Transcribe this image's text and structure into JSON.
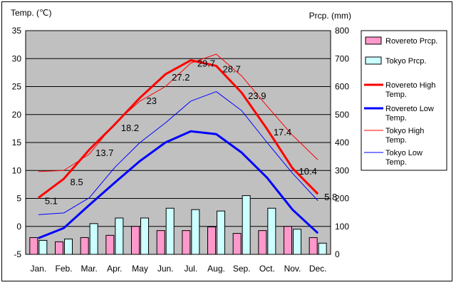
{
  "chart_data": {
    "type": "bar",
    "title": "",
    "y_left_label": "Temp. (℃)",
    "y_right_label": "Prcp. (mm)",
    "categories": [
      "Jan.",
      "Feb.",
      "Mar.",
      "Apr.",
      "May",
      "Jun.",
      "Jul.",
      "Aug.",
      "Sep.",
      "Oct.",
      "Nov.",
      "Dec."
    ],
    "y_left_ticks": [
      "35",
      "30",
      "25",
      "20",
      "15",
      "10",
      "5",
      "0",
      "-5"
    ],
    "y_right_ticks": [
      "800",
      "700",
      "600",
      "500",
      "400",
      "300",
      "200",
      "100",
      "0"
    ],
    "y_left_lim": [
      -5,
      35
    ],
    "y_right_lim": [
      0,
      800
    ],
    "grid": true,
    "legend_position": "right",
    "series": [
      {
        "name": "Rovereto Prcp.",
        "kind": "bar",
        "axis": "right",
        "color": "#FF99CC",
        "values": [
          60,
          45,
          60,
          68,
          100,
          85,
          85,
          98,
          75,
          85,
          100,
          60
        ]
      },
      {
        "name": "Tokyo Prcp.",
        "kind": "bar",
        "axis": "right",
        "color": "#CCFFFF",
        "values": [
          50,
          55,
          110,
          130,
          130,
          165,
          160,
          155,
          210,
          165,
          90,
          40
        ]
      },
      {
        "name": "Rovereto High Temp.",
        "kind": "line",
        "axis": "left",
        "color": "#FF0000",
        "width": 3,
        "values": [
          5.1,
          8.5,
          13.7,
          18.2,
          23,
          27.2,
          29.7,
          28.7,
          23.9,
          17.4,
          10.4,
          5.8
        ]
      },
      {
        "name": "Rovereto Low Temp.",
        "kind": "line",
        "axis": "left",
        "color": "#0000FF",
        "width": 3,
        "values": [
          -2.1,
          -0.3,
          3.8,
          7.8,
          11.7,
          15,
          17,
          16.5,
          13.2,
          8.7,
          3,
          -1.2
        ]
      },
      {
        "name": "Tokyo High Temp.",
        "kind": "line",
        "axis": "left",
        "color": "#FF0000",
        "width": 1,
        "values": [
          9.8,
          10,
          12.9,
          18.4,
          22.4,
          25,
          29.2,
          30.8,
          26.9,
          21.5,
          16.3,
          11.9
        ]
      },
      {
        "name": "Tokyo Low Temp.",
        "kind": "line",
        "axis": "left",
        "color": "#0000FF",
        "width": 1,
        "values": [
          2.1,
          2.4,
          5.1,
          10.5,
          15,
          18.5,
          22.4,
          24.1,
          20.7,
          15,
          9.5,
          4.6
        ]
      }
    ],
    "data_labels": [
      "5.1",
      "8.5",
      "13.7",
      "18.2",
      "23",
      "27.2",
      "29.7",
      "28.7",
      "23.9",
      "17.4",
      "10.4",
      "5.8"
    ]
  },
  "legend": [
    {
      "label": "Rovereto Prcp.",
      "swatch": "bar",
      "color": "#FF99CC"
    },
    {
      "label": "Tokyo Prcp.",
      "swatch": "bar",
      "color": "#CCFFFF"
    },
    {
      "label": "Rovereto High Temp.",
      "swatch": "thick",
      "color": "#FF0000"
    },
    {
      "label": "Rovereto Low Temp.",
      "swatch": "thick",
      "color": "#0000FF"
    },
    {
      "label": "Tokyo High Temp.",
      "swatch": "thin",
      "color": "#FF0000"
    },
    {
      "label": "Tokyo Low Temp.",
      "swatch": "thin",
      "color": "#0000FF"
    }
  ],
  "plot_bg": "#C0C0C0"
}
